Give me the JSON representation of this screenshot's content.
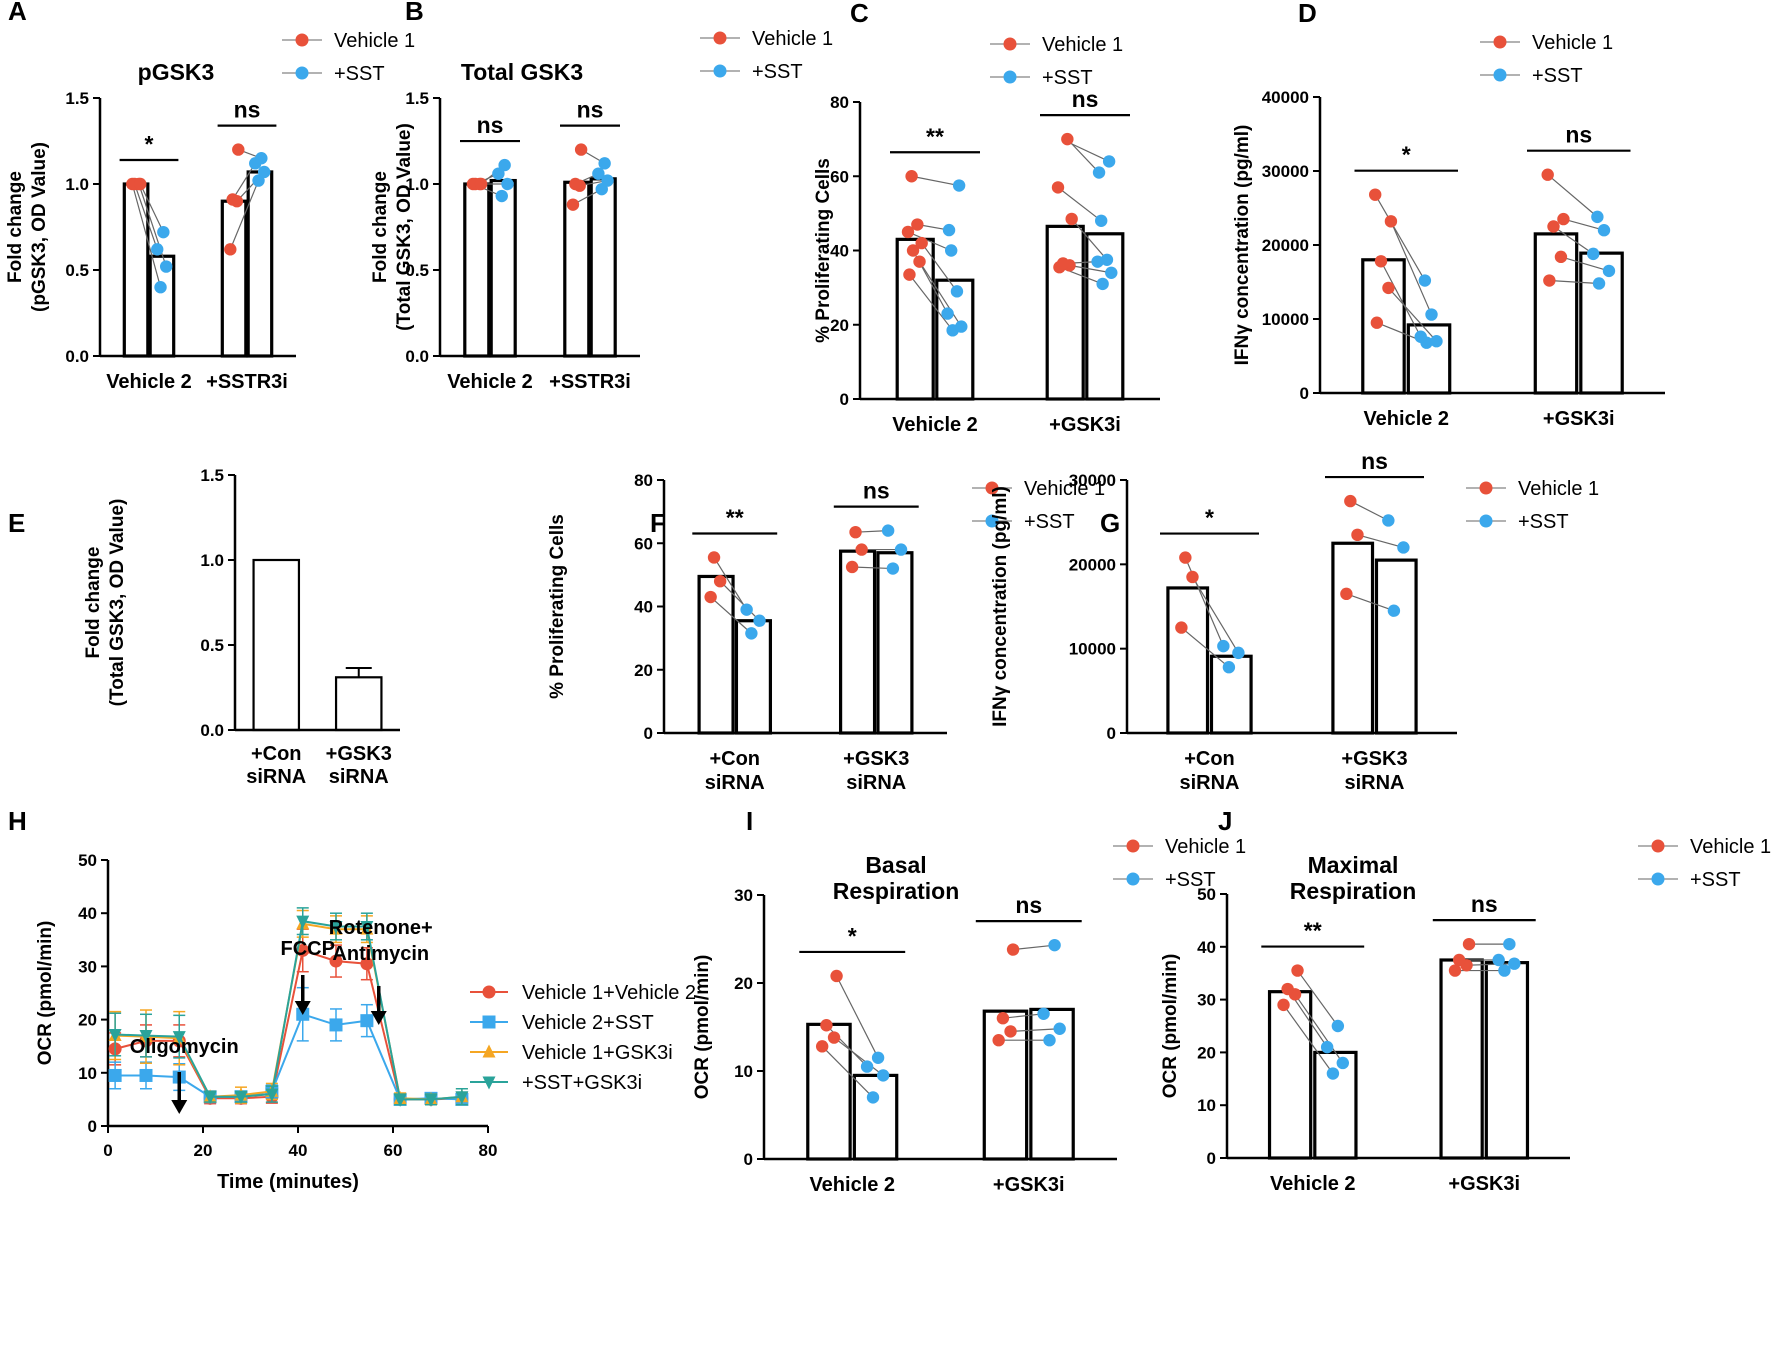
{
  "colors": {
    "vehicle": "#e8513a",
    "sst": "#3ba8ec",
    "gsk3i": "#f5a623",
    "combo": "#2aa39a",
    "bar": "#000000"
  },
  "legend_paired": {
    "vehicle_label": "Vehicle 1",
    "sst_label": "+SST"
  },
  "chart_data": [
    {
      "id": "A",
      "type": "bar",
      "letter": "A",
      "title": "pGSK3",
      "ylabel": [
        "Fold change",
        "(pGSK3, OD Value)"
      ],
      "ylim": [
        0,
        1.5
      ],
      "yticks": [
        "0.0",
        "0.5",
        "1.0",
        "1.5"
      ],
      "categories": [
        [
          "Vehicle 2"
        ],
        [
          "+SSTR3i"
        ]
      ],
      "series": [
        {
          "name": "Vehicle 1",
          "values": [
            1.0,
            0.9
          ]
        },
        {
          "name": "+SST",
          "values": [
            0.58,
            1.07
          ]
        }
      ],
      "points": [
        {
          "veh": [
            1.0,
            1.0,
            1.0,
            1.0
          ],
          "sst": [
            0.4,
            0.52,
            0.62,
            0.72
          ]
        },
        {
          "veh": [
            0.62,
            0.9,
            0.91,
            1.2
          ],
          "sst": [
            1.02,
            1.07,
            1.12,
            1.15
          ]
        }
      ],
      "significance": [
        "*",
        "ns"
      ]
    },
    {
      "id": "B",
      "type": "bar",
      "letter": "B",
      "title": "Total GSK3",
      "ylabel": [
        "Fold change",
        "(Total GSK3, OD Value)"
      ],
      "ylim": [
        0,
        1.5
      ],
      "yticks": [
        "0.0",
        "0.5",
        "1.0",
        "1.5"
      ],
      "categories": [
        [
          "Vehicle 2"
        ],
        [
          "+SSTR3i"
        ]
      ],
      "series": [
        {
          "name": "Vehicle 1",
          "values": [
            1.0,
            1.01
          ]
        },
        {
          "name": "+SST",
          "values": [
            1.02,
            1.03
          ]
        }
      ],
      "points": [
        {
          "veh": [
            1.0,
            1.0,
            1.0,
            1.0
          ],
          "sst": [
            0.93,
            1.0,
            1.06,
            1.11
          ]
        },
        {
          "veh": [
            0.88,
            0.99,
            1.0,
            1.2
          ],
          "sst": [
            0.97,
            1.02,
            1.06,
            1.12
          ]
        }
      ],
      "significance": [
        "ns",
        "ns"
      ]
    },
    {
      "id": "C",
      "type": "bar",
      "letter": "C",
      "title": "",
      "ylabel": [
        "% Proliferating Cells"
      ],
      "ylim": [
        0,
        80
      ],
      "yticks": [
        "0",
        "20",
        "40",
        "60",
        "80"
      ],
      "categories": [
        [
          "Vehicle 2"
        ],
        [
          "+GSK3i"
        ]
      ],
      "series": [
        {
          "name": "Vehicle 1",
          "values": [
            43,
            46.5
          ]
        },
        {
          "name": "+SST",
          "values": [
            32,
            44.5
          ]
        }
      ],
      "points": [
        {
          "veh": [
            33.5,
            37,
            40,
            42,
            45,
            47,
            60
          ],
          "sst": [
            18.5,
            19.5,
            23,
            29,
            40,
            45.5,
            57.5
          ]
        },
        {
          "veh": [
            35.5,
            36,
            36.5,
            48.5,
            57,
            70
          ],
          "sst": [
            31,
            34,
            37,
            37.5,
            48,
            61,
            64
          ]
        }
      ],
      "significance": [
        "**",
        "ns"
      ]
    },
    {
      "id": "D",
      "type": "bar",
      "letter": "D",
      "title": "",
      "ylabel": [
        "IFNγ concentration (pg/ml)"
      ],
      "ylim": [
        0,
        40000
      ],
      "yticks": [
        "0",
        "10000",
        "20000",
        "30000",
        "40000"
      ],
      "categories": [
        [
          "Vehicle 2"
        ],
        [
          "+GSK3i"
        ]
      ],
      "series": [
        {
          "name": "Vehicle 1",
          "values": [
            18000,
            21500
          ]
        },
        {
          "name": "+SST",
          "values": [
            9200,
            18900
          ]
        }
      ],
      "points": [
        {
          "veh": [
            9500,
            14200,
            17800,
            23200,
            26800
          ],
          "sst": [
            6800,
            7000,
            7600,
            10600,
            15200
          ]
        },
        {
          "veh": [
            15200,
            18400,
            22500,
            23500,
            29500
          ],
          "sst": [
            14800,
            16500,
            18800,
            22000,
            23800
          ]
        }
      ],
      "significance": [
        "*",
        "ns"
      ]
    },
    {
      "id": "E",
      "type": "bar",
      "letter": "E",
      "title": "",
      "ylabel": [
        "Fold change",
        "(Total GSK3, OD Value)"
      ],
      "ylim": [
        0,
        1.5
      ],
      "yticks": [
        "0.0",
        "0.5",
        "1.0",
        "1.5"
      ],
      "categories": [
        [
          "+Con",
          "siRNA"
        ],
        [
          "+GSK3",
          "siRNA"
        ]
      ],
      "values": [
        1.0,
        0.31
      ],
      "errors": [
        0,
        0.055
      ]
    },
    {
      "id": "F",
      "type": "bar",
      "letter": "F",
      "title": "",
      "ylabel": [
        "% Proliferating Cells"
      ],
      "ylim": [
        0,
        80
      ],
      "yticks": [
        "0",
        "20",
        "40",
        "60",
        "80"
      ],
      "categories": [
        [
          "+Con",
          "siRNA"
        ],
        [
          "+GSK3",
          "siRNA"
        ]
      ],
      "series": [
        {
          "name": "Vehicle 1",
          "values": [
            49.5,
            57.5
          ]
        },
        {
          "name": "+SST",
          "values": [
            35.5,
            57
          ]
        }
      ],
      "points": [
        {
          "veh": [
            43,
            48,
            55.5
          ],
          "sst": [
            31.5,
            35.5,
            39
          ]
        },
        {
          "veh": [
            52.5,
            58,
            63.5
          ],
          "sst": [
            52,
            58,
            64
          ]
        }
      ],
      "significance": [
        "**",
        "ns"
      ]
    },
    {
      "id": "G",
      "type": "bar",
      "letter": "G",
      "title": "",
      "ylabel": [
        "IFNγ concentration (pg/ml)"
      ],
      "ylim": [
        0,
        30000
      ],
      "yticks": [
        "0",
        "10000",
        "20000",
        "30000"
      ],
      "categories": [
        [
          "+Con",
          "siRNA"
        ],
        [
          "+GSK3",
          "siRNA"
        ]
      ],
      "series": [
        {
          "name": "Vehicle 1",
          "values": [
            17200,
            22500
          ]
        },
        {
          "name": "+SST",
          "values": [
            9100,
            20500
          ]
        }
      ],
      "points": [
        {
          "veh": [
            12500,
            18500,
            20800
          ],
          "sst": [
            7800,
            9500,
            10300
          ]
        },
        {
          "veh": [
            16500,
            23500,
            27500
          ],
          "sst": [
            14500,
            22000,
            25200
          ]
        }
      ],
      "significance": [
        "*",
        "ns"
      ]
    },
    {
      "id": "H",
      "type": "line",
      "letter": "H",
      "title": "",
      "ylabel": [
        "OCR (pmol/min)"
      ],
      "xlabel": "Time (minutes)",
      "ylim": [
        0,
        50
      ],
      "xlim": [
        0,
        80
      ],
      "yticks": [
        "0",
        "10",
        "20",
        "30",
        "40",
        "50"
      ],
      "xticks": [
        "0",
        "20",
        "40",
        "60",
        "80"
      ],
      "x": [
        1.5,
        8,
        15,
        21.5,
        28,
        34.5,
        41,
        48,
        54.5,
        61.5,
        68,
        74.5
      ],
      "series": [
        {
          "name": "Vehicle 1+Vehicle 2",
          "color": "#e8513a",
          "marker": "circle",
          "values": [
            14.5,
            16,
            16,
            5.2,
            5.2,
            5.5,
            33,
            31,
            30.5,
            5,
            5,
            5.2
          ],
          "errors": [
            3,
            3,
            3,
            1,
            1,
            1.2,
            4,
            3,
            3,
            1,
            1,
            1
          ]
        },
        {
          "name": "Vehicle 2+SST",
          "color": "#3ba8ec",
          "marker": "square",
          "values": [
            9.5,
            9.5,
            9.2,
            5.5,
            5.5,
            6.5,
            21,
            19,
            19.8,
            5,
            5.2,
            5
          ],
          "errors": [
            2.5,
            2.5,
            2.5,
            1,
            1,
            1.2,
            5,
            3,
            3,
            1,
            1,
            1
          ]
        },
        {
          "name": "Vehicle 1+GSK3i",
          "color": "#f5a623",
          "marker": "triangle-up",
          "values": [
            17,
            16.8,
            16.5,
            5.5,
            5.8,
            6.5,
            38,
            37,
            37,
            5.2,
            5,
            5.5
          ],
          "errors": [
            4.5,
            5,
            5,
            1,
            1.5,
            1.5,
            2.5,
            2.5,
            2.5,
            1,
            1,
            1.5
          ]
        },
        {
          "name": "+SST+GSK3i",
          "color": "#2aa39a",
          "marker": "triangle-down",
          "values": [
            17.2,
            17,
            16.8,
            5.5,
            5.5,
            6,
            38.5,
            37.5,
            37.5,
            5,
            5,
            5.5
          ],
          "errors": [
            4,
            4,
            4,
            1,
            1,
            1.5,
            2.5,
            2.5,
            2.5,
            1,
            1,
            1.5
          ]
        }
      ],
      "annotations": [
        {
          "lines": [
            "Oligomycin"
          ],
          "x": 15
        },
        {
          "lines": [
            "FCCP"
          ],
          "x": 41
        },
        {
          "lines": [
            "Rotenone+",
            "Antimycin"
          ],
          "x": 57
        }
      ]
    },
    {
      "id": "I",
      "type": "bar",
      "letter": "I",
      "title": "Basal\nRespiration",
      "ylabel": [
        "OCR (pmol/min)"
      ],
      "ylim": [
        0,
        30
      ],
      "yticks": [
        "0",
        "10",
        "20",
        "30"
      ],
      "categories": [
        [
          "Vehicle 2"
        ],
        [
          "+GSK3i"
        ]
      ],
      "series": [
        {
          "name": "Vehicle 1",
          "values": [
            15.3,
            16.8
          ]
        },
        {
          "name": "+SST",
          "values": [
            9.5,
            17
          ]
        }
      ],
      "points": [
        {
          "veh": [
            12.8,
            13.8,
            15.2,
            20.8
          ],
          "sst": [
            7,
            9.5,
            10.5,
            11.5
          ]
        },
        {
          "veh": [
            13.5,
            14.5,
            16,
            23.8
          ],
          "sst": [
            13.5,
            14.8,
            16.5,
            24.3
          ]
        }
      ],
      "significance": [
        "*",
        "ns"
      ]
    },
    {
      "id": "J",
      "type": "bar",
      "letter": "J",
      "title": "Maximal\nRespiration",
      "ylabel": [
        "OCR (pmol/min)"
      ],
      "ylim": [
        0,
        50
      ],
      "yticks": [
        "0",
        "10",
        "20",
        "30",
        "40",
        "50"
      ],
      "categories": [
        [
          "Vehicle 2"
        ],
        [
          "+GSK3i"
        ]
      ],
      "series": [
        {
          "name": "Vehicle 1",
          "values": [
            31.5,
            37.5
          ]
        },
        {
          "name": "+SST",
          "values": [
            20,
            37
          ]
        }
      ],
      "points": [
        {
          "veh": [
            29,
            31,
            32,
            35.5
          ],
          "sst": [
            16,
            18,
            21,
            25
          ]
        },
        {
          "veh": [
            35.5,
            36.5,
            37.5,
            40.5
          ],
          "sst": [
            35.5,
            36.8,
            37.5,
            40.5
          ]
        }
      ],
      "significance": [
        "**",
        "ns"
      ]
    }
  ]
}
